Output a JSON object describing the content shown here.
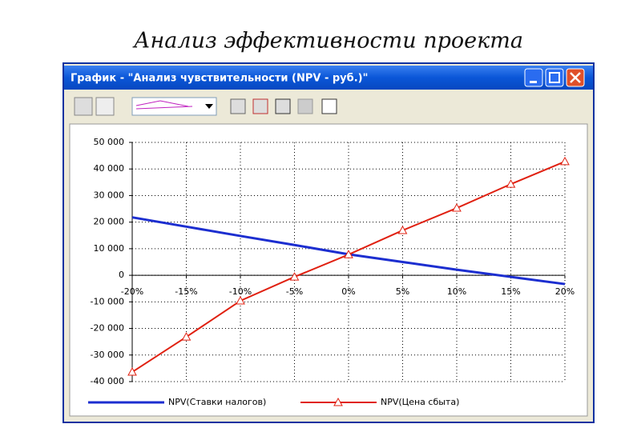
{
  "slide_title": "Анализ эффективности проекта",
  "window": {
    "title": "График - \"Анализ чувствительности (NPV - руб.)\""
  },
  "chart_data": {
    "type": "line",
    "categories": [
      "-20%",
      "-15%",
      "-10%",
      "-5%",
      "0%",
      "5%",
      "10%",
      "15%",
      "20%"
    ],
    "series": [
      {
        "name": "NPV(Ставки налогов)",
        "color": "#1c2ed0",
        "values": [
          21800,
          18300,
          14800,
          11400,
          7900,
          5000,
          2100,
          -600,
          -3300
        ]
      },
      {
        "name": "NPV(Цена сбыта)",
        "color": "#e02010",
        "marker": "triangle",
        "values": [
          -36400,
          -23200,
          -9600,
          -600,
          7800,
          16900,
          25300,
          34300,
          42800
        ]
      }
    ],
    "ylim": [
      -40000,
      50000
    ],
    "yticks": [
      {
        "value": -40000,
        "label": "-40 000"
      },
      {
        "value": -30000,
        "label": "-30 000"
      },
      {
        "value": -20000,
        "label": "-20 000"
      },
      {
        "value": -10000,
        "label": "-10 000"
      },
      0,
      {
        "value": 10000,
        "label": "10 000"
      },
      {
        "value": 20000,
        "label": "20 000"
      },
      {
        "value": 30000,
        "label": "30 000"
      },
      {
        "value": 40000,
        "label": "40 000"
      },
      {
        "value": 50000,
        "label": "50 000"
      }
    ],
    "grid": true,
    "legend": "bottom"
  }
}
